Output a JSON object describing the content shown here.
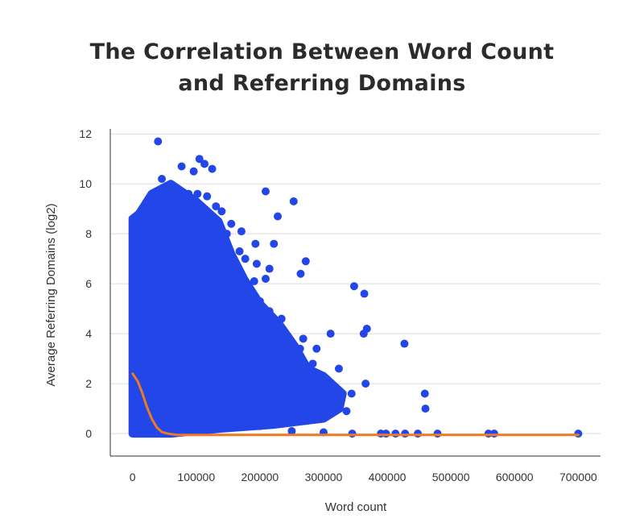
{
  "colors": {
    "points": "#2346e8",
    "trend": "#f07a22",
    "grid": "#dcdcdc",
    "axis": "#333333"
  },
  "chart_data": {
    "type": "scatter",
    "title_line1": "The Correlation Between Word Count",
    "title_line2": "and Referring Domains",
    "xlabel": "Word count",
    "ylabel": "Average Referring Domains (log2)",
    "xlim": [
      -35000,
      735000
    ],
    "ylim": [
      -0.9,
      12.2
    ],
    "xticks": [
      0,
      100000,
      200000,
      300000,
      400000,
      500000,
      600000,
      700000
    ],
    "yticks": [
      0,
      2,
      4,
      6,
      8,
      10,
      12
    ],
    "grid": "horizontal",
    "dense_region": [
      [
        0,
        0
      ],
      [
        0,
        8.6
      ],
      [
        10000,
        8.8
      ],
      [
        30000,
        9.6
      ],
      [
        60000,
        10.0
      ],
      [
        100000,
        9.3
      ],
      [
        135000,
        8.5
      ],
      [
        155000,
        7.2
      ],
      [
        175000,
        6.2
      ],
      [
        200000,
        5.2
      ],
      [
        230000,
        4.4
      ],
      [
        255000,
        3.5
      ],
      [
        275000,
        2.6
      ],
      [
        300000,
        2.3
      ],
      [
        330000,
        1.6
      ],
      [
        325000,
        1.0
      ],
      [
        300000,
        0.6
      ],
      [
        220000,
        0.35
      ],
      [
        140000,
        0.2
      ],
      [
        60000,
        0
      ]
    ],
    "points": [
      [
        40000,
        11.7
      ],
      [
        105000,
        11.0
      ],
      [
        113000,
        10.8
      ],
      [
        125000,
        10.6
      ],
      [
        77000,
        10.7
      ],
      [
        46000,
        10.2
      ],
      [
        96000,
        10.5
      ],
      [
        57000,
        9.9
      ],
      [
        88000,
        9.6
      ],
      [
        102000,
        9.6
      ],
      [
        117000,
        9.5
      ],
      [
        131000,
        9.1
      ],
      [
        209000,
        9.7
      ],
      [
        253000,
        9.3
      ],
      [
        228000,
        8.7
      ],
      [
        140000,
        8.9
      ],
      [
        155000,
        8.4
      ],
      [
        121000,
        8.3
      ],
      [
        148000,
        8.0
      ],
      [
        171000,
        8.1
      ],
      [
        193000,
        7.6
      ],
      [
        222000,
        7.6
      ],
      [
        168000,
        7.3
      ],
      [
        177000,
        7.0
      ],
      [
        195000,
        6.8
      ],
      [
        215000,
        6.6
      ],
      [
        272000,
        6.9
      ],
      [
        264000,
        6.4
      ],
      [
        209000,
        6.2
      ],
      [
        191000,
        6.1
      ],
      [
        185000,
        5.6
      ],
      [
        200000,
        5.3
      ],
      [
        215000,
        4.9
      ],
      [
        234000,
        4.6
      ],
      [
        222000,
        4.1
      ],
      [
        244000,
        3.9
      ],
      [
        268000,
        3.8
      ],
      [
        263000,
        3.4
      ],
      [
        289000,
        3.4
      ],
      [
        283000,
        2.8
      ],
      [
        311000,
        4.0
      ],
      [
        324000,
        2.6
      ],
      [
        292000,
        2.3
      ],
      [
        303000,
        1.6
      ],
      [
        319000,
        1.6
      ],
      [
        348000,
        5.9
      ],
      [
        364000,
        5.6
      ],
      [
        368000,
        4.2
      ],
      [
        363000,
        4.0
      ],
      [
        427000,
        3.6
      ],
      [
        366000,
        2.0
      ],
      [
        344000,
        1.6
      ],
      [
        459000,
        1.6
      ],
      [
        460000,
        1.0
      ],
      [
        306000,
        1.0
      ],
      [
        336000,
        0.9
      ],
      [
        213000,
        1.0
      ],
      [
        243000,
        1.6
      ],
      [
        173000,
        0.6
      ],
      [
        150000,
        0.6
      ],
      [
        200000,
        0.3
      ],
      [
        250000,
        0.1
      ],
      [
        300000,
        0.05
      ],
      [
        345000,
        0
      ],
      [
        390000,
        0
      ],
      [
        398000,
        0
      ],
      [
        413000,
        0
      ],
      [
        428000,
        0
      ],
      [
        448000,
        0
      ],
      [
        479000,
        0
      ],
      [
        559000,
        0
      ],
      [
        568000,
        0
      ],
      [
        700000,
        0
      ]
    ],
    "trend": [
      [
        0,
        2.4
      ],
      [
        8000,
        2.1
      ],
      [
        15000,
        1.65
      ],
      [
        22000,
        1.1
      ],
      [
        30000,
        0.6
      ],
      [
        38000,
        0.25
      ],
      [
        46000,
        0.06
      ],
      [
        55000,
        0.0
      ],
      [
        70000,
        -0.05
      ],
      [
        150000,
        -0.05
      ],
      [
        300000,
        -0.05
      ],
      [
        500000,
        -0.05
      ],
      [
        700000,
        -0.05
      ]
    ]
  }
}
